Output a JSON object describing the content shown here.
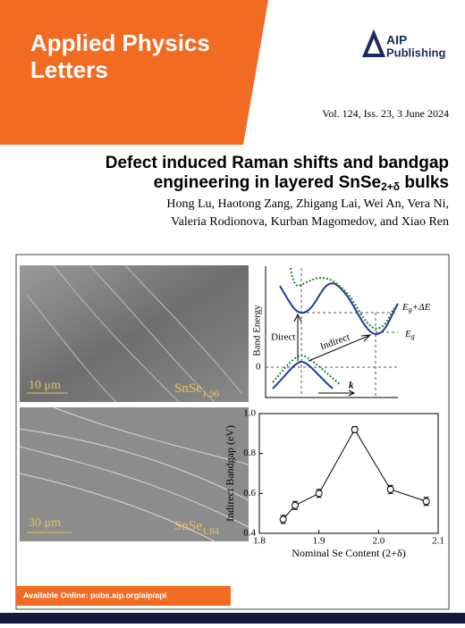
{
  "header": {
    "journal_line1": "Applied Physics",
    "journal_line2": "Letters",
    "publisher_line1": "AIP",
    "publisher_line2": "Publishing",
    "issue": "Vol. 124, Iss. 23, 3 June 2024"
  },
  "article": {
    "title_line1": "Defect induced Raman shifts and bandgap",
    "title_line2_main": "engineering in layered SnSe",
    "title_line2_sub": "2+δ",
    "title_line2_end": " bulks",
    "authors_line1": "Hong Lu, Haotong Zang, Zhigang Lai, Wei An, Vera Ni,",
    "authors_line2": "Valeria Rodionova, Kurban Magomedov, and Xiao Ren"
  },
  "figure": {
    "sem_top": {
      "scale": "10 μm",
      "sample_main": "SnSe",
      "sample_sub": "1.96"
    },
    "sem_bottom": {
      "scale": "30 μm",
      "sample_main": "SnSe",
      "sample_sub": "1.84"
    },
    "band": {
      "y_label": "Band Energy",
      "direct": "Direct",
      "indirect": "Indirect",
      "upper_main": "E",
      "upper_sub": "g",
      "upper_end": "+ΔE",
      "lower_main": "E",
      "lower_sub": "g",
      "zero": "0",
      "k": "k"
    }
  },
  "chart_data": {
    "type": "scatter",
    "x_label": "Nominal Se Content (2+δ)",
    "y_label": "Indirect Bandgap (eV)",
    "x": [
      1.84,
      1.86,
      1.9,
      1.96,
      2.02,
      2.08
    ],
    "values": [
      0.47,
      0.54,
      0.6,
      0.92,
      0.62,
      0.56
    ],
    "errors": [
      0.02,
      0.02,
      0.02,
      0.015,
      0.02,
      0.02
    ],
    "color": "#000000",
    "xlim": [
      1.8,
      2.1
    ],
    "xticks": [
      1.8,
      1.9,
      {
        "value": 2,
        "label": "2.0"
      },
      2.1
    ],
    "ylim": [
      0.4,
      1
    ],
    "yticks": [
      0.4,
      0.6,
      0.8,
      {
        "value": 1,
        "label": "1.0"
      }
    ]
  },
  "footer": {
    "available": "Available Online: pubs.aip.org/aip/apl"
  }
}
